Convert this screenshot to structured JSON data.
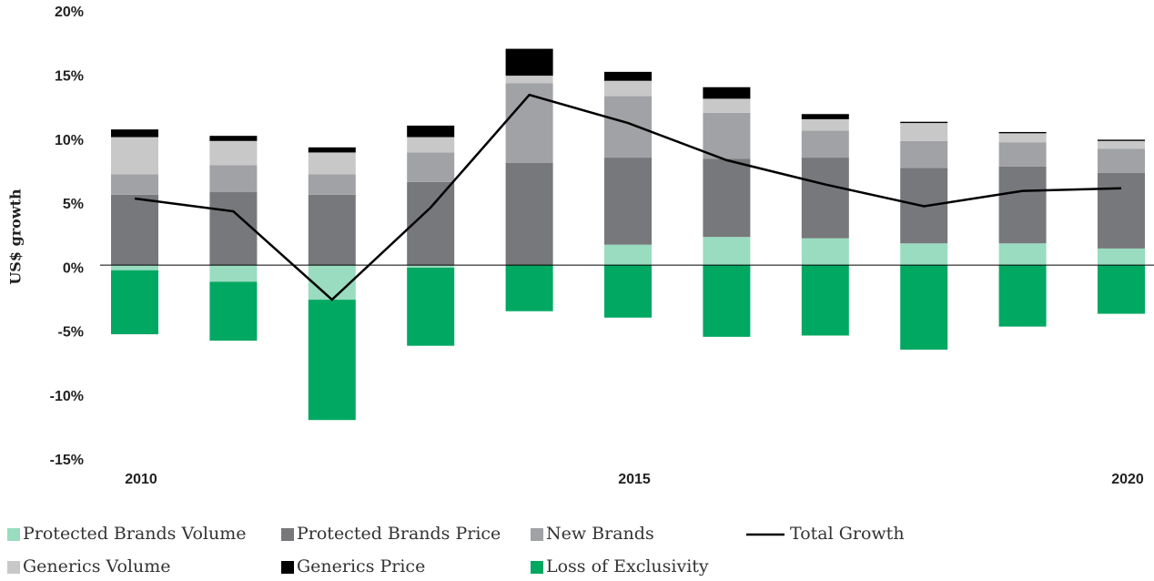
{
  "chart_data": {
    "type": "bar",
    "stacked": true,
    "y_label": "US$ growth",
    "categories": [
      "2010",
      null,
      null,
      null,
      null,
      "2015",
      null,
      null,
      null,
      null,
      "2020"
    ],
    "series": [
      {
        "name": "Protected Brands Volume",
        "color": "#99dcc0",
        "values": [
          -0.4,
          -1.3,
          -2.7,
          -0.2,
          0,
          1.6,
          2.2,
          2.1,
          1.7,
          1.7,
          1.3
        ]
      },
      {
        "name": "Protected Brands Price",
        "color": "#77787b",
        "values": [
          5.5,
          5.7,
          5.5,
          6.5,
          8.0,
          6.8,
          6.1,
          6.3,
          5.9,
          6.0,
          5.9
        ]
      },
      {
        "name": "New Brands",
        "color": "#a1a2a5",
        "values": [
          1.6,
          2.1,
          1.6,
          2.3,
          6.2,
          4.8,
          3.6,
          2.1,
          2.1,
          1.9,
          1.9
        ]
      },
      {
        "name": "Generics Volume",
        "color": "#c8c8c8",
        "values": [
          2.9,
          1.9,
          1.7,
          1.2,
          0.6,
          1.2,
          1.1,
          0.9,
          1.4,
          0.7,
          0.6
        ]
      },
      {
        "name": "Generics Price",
        "color": "#000000",
        "values": [
          0.6,
          0.4,
          0.4,
          0.9,
          2.1,
          0.7,
          0.9,
          0.4,
          0.1,
          0.1,
          0.1
        ]
      },
      {
        "name": "Loss of Exclusivity",
        "color": "#00a862",
        "values": [
          -5.0,
          -4.6,
          -9.4,
          -6.1,
          -3.6,
          -4.1,
          -5.6,
          -5.5,
          -6.6,
          -4.8,
          -3.8
        ]
      },
      {
        "name": "Total Growth",
        "type": "line",
        "color": "#000000",
        "values": [
          5.2,
          4.2,
          -2.7,
          4.5,
          13.3,
          11.1,
          8.2,
          6.3,
          4.6,
          5.8,
          6.0
        ]
      }
    ],
    "ylim": [
      -15,
      20
    ],
    "yticks": [
      {
        "value": 20,
        "label": "20%"
      },
      {
        "value": 15,
        "label": "15%"
      },
      {
        "value": 10,
        "label": "10%"
      },
      {
        "value": 5,
        "label": "5%"
      },
      {
        "value": 0,
        "label": "0%"
      },
      {
        "value": -5,
        "label": "-5%"
      },
      {
        "value": -10,
        "label": "-10%"
      },
      {
        "value": -15,
        "label": "-15%"
      }
    ],
    "grid": false
  }
}
